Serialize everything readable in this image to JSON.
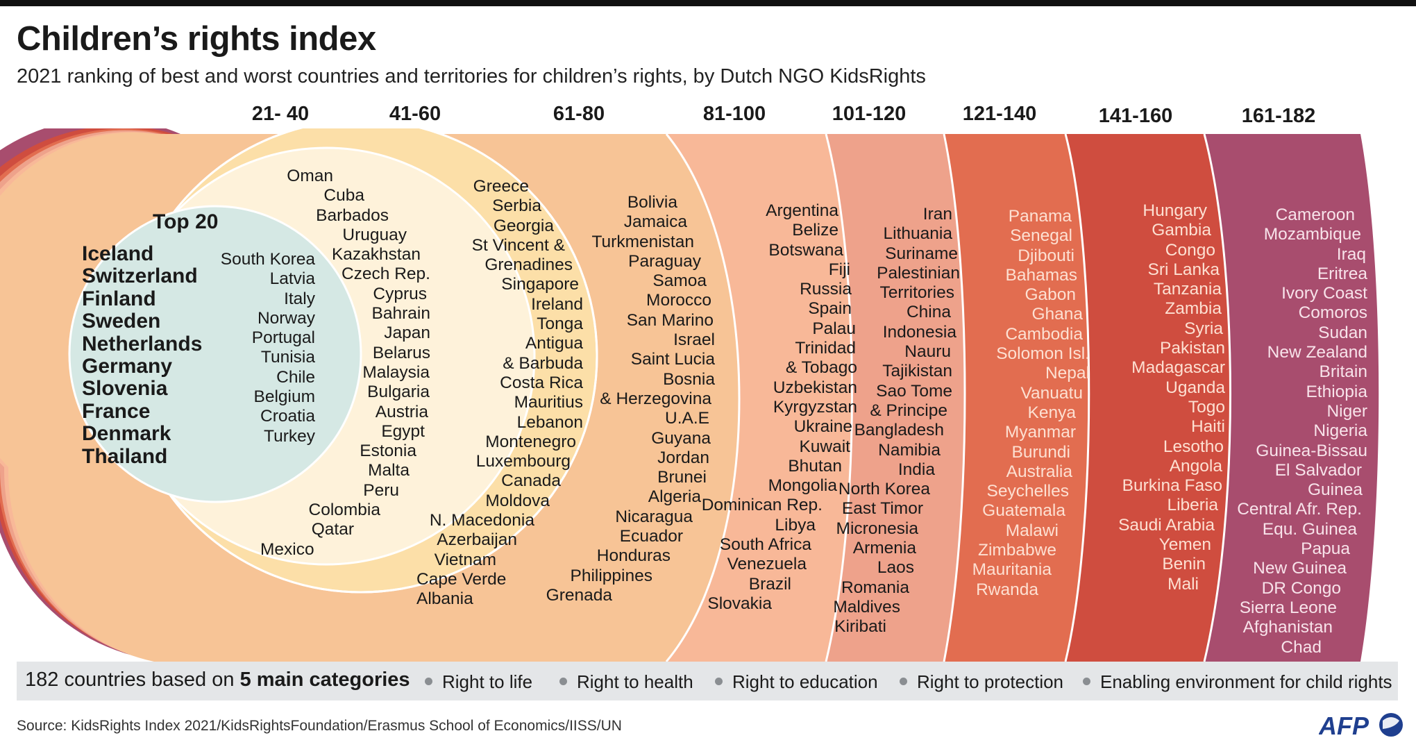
{
  "title": "Children’s rights index",
  "subtitle": "2021 ranking of best and worst countries and territories for children’s rights, by Dutch NGO KidsRights",
  "ranges": [
    "21- 40",
    "41-60",
    "61-80",
    "81-100",
    "101-120",
    "121-140",
    "141-160",
    "161-182"
  ],
  "top20": {
    "heading": "Top 20",
    "bold": [
      "Iceland",
      "Switzerland",
      "Finland",
      "Sweden",
      "Netherlands",
      "Germany",
      "Slovenia",
      "France",
      "Denmark",
      "Thailand"
    ],
    "others": [
      "South Korea",
      "Latvia",
      "Italy",
      "Norway",
      "Portugal",
      "Tunisia",
      "Chile",
      "Belgium",
      "Croatia",
      "Turkey"
    ]
  },
  "groups": {
    "r21_40": [
      "Oman",
      "Cuba",
      "Barbados",
      "Uruguay",
      "Kazakhstan",
      "Czech Rep.",
      "Cyprus",
      "Bahrain",
      "Japan",
      "Belarus",
      "Malaysia",
      "Bulgaria",
      "Austria",
      "Egypt",
      "Estonia",
      "Malta",
      "Peru",
      "Colombia",
      "Qatar",
      "Mexico"
    ],
    "r41_60": [
      "Greece",
      "Serbia",
      "Georgia",
      "St Vincent &",
      "Grenadines",
      "Singapore",
      "Ireland",
      "Tonga",
      "Antigua",
      "& Barbuda",
      "Costa Rica",
      "Mauritius",
      "Lebanon",
      "Montenegro",
      "Luxembourg",
      "Canada",
      "Moldova",
      "N. Macedonia",
      "Azerbaijan",
      "Vietnam",
      "Cape Verde",
      "Albania"
    ],
    "r61_80": [
      "Bolivia",
      "Jamaica",
      "Turkmenistan",
      "Paraguay",
      "Samoa",
      "Morocco",
      "San Marino",
      "Israel",
      "Saint Lucia",
      "Bosnia",
      "& Herzegovina",
      "U.A.E",
      "Guyana",
      "Jordan",
      "Brunei",
      "Algeria",
      "Nicaragua",
      "Ecuador",
      "Honduras",
      "Philippines",
      "Grenada"
    ],
    "r81_100": [
      "Argentina",
      "Belize",
      "Botswana",
      "Fiji",
      "Russia",
      "Spain",
      "Palau",
      "Trinidad",
      "& Tobago",
      "Uzbekistan",
      "Kyrgyzstan",
      "Ukraine",
      "Kuwait",
      "Bhutan",
      "Mongolia",
      "Dominican Rep.",
      "Libya",
      "South Africa",
      "Venezuela",
      "Brazil",
      "Slovakia"
    ],
    "r101_120": [
      "Iran",
      "Lithuania",
      "Suriname",
      "Palestinian",
      "Territories",
      "China",
      "Indonesia",
      "Nauru",
      "Tajikistan",
      "Sao Tome",
      "& Principe",
      "Bangladesh",
      "Namibia",
      "India",
      "North Korea",
      "East Timor",
      "Micronesia",
      "Armenia",
      "Laos",
      "Romania",
      "Maldives",
      "Kiribati"
    ],
    "r121_140": [
      "Panama",
      "Senegal",
      "Djibouti",
      "Bahamas",
      "Gabon",
      "Ghana",
      "Cambodia",
      "Solomon Isl.",
      "Nepal",
      "Vanuatu",
      "Kenya",
      "Myanmar",
      "Burundi",
      "Australia",
      "Seychelles",
      "Guatemala",
      "Malawi",
      "Zimbabwe",
      "Mauritania",
      "Rwanda"
    ],
    "r141_160": [
      "Hungary",
      "Gambia",
      "Congo",
      "Sri Lanka",
      "Tanzania",
      "Zambia",
      "Syria",
      "Pakistan",
      "Madagascar",
      "Uganda",
      "Togo",
      "Haiti",
      "Lesotho",
      "Angola",
      "Burkina Faso",
      "Liberia",
      "Saudi Arabia",
      "Yemen",
      "Benin",
      "Mali"
    ],
    "r161_182": [
      "Cameroon",
      "Mozambique",
      "Iraq",
      "Eritrea",
      "Ivory Coast",
      "Comoros",
      "Sudan",
      "New Zealand",
      "Britain",
      "Ethiopia",
      "Niger",
      "Nigeria",
      "Guinea-Bissau",
      "El Salvador",
      "Guinea",
      "Central Afr. Rep.",
      "Equ. Guinea",
      "Papua",
      "New Guinea",
      "DR Congo",
      "Sierra Leone",
      "Afghanistan",
      "Chad"
    ]
  },
  "colors": {
    "top20": "#d5e8e4",
    "r21_40": "#fef2da",
    "r41_60": "#fcdfa8",
    "r61_80": "#f7c496",
    "r81_100": "#f8b898",
    "r101_120": "#eea28b",
    "r121_140": "#e26d50",
    "r141_160": "#cf4d3f",
    "r161_182": "#a84d6e"
  },
  "legend": {
    "count_text": "182 countries based on ",
    "emphasis": "5 main categories",
    "categories": [
      "Right to life",
      "Right to health",
      "Right to education",
      "Right to protection",
      "Enabling environment for child rights"
    ]
  },
  "source": "Source: KidsRights Index 2021/KidsRightsFoundation/Erasmus School of Economics/IISS/UN",
  "logo": "AFP"
}
